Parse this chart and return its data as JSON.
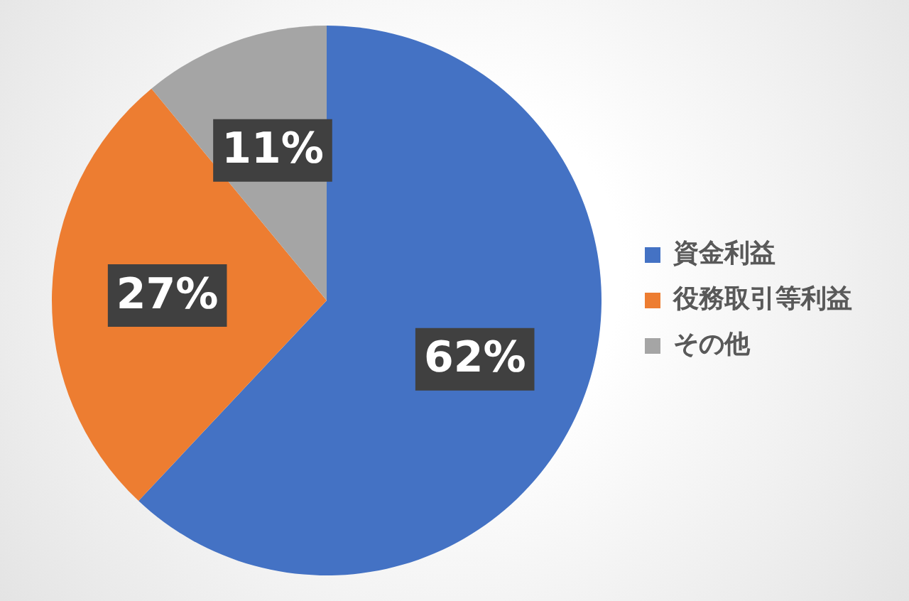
{
  "chart_data": {
    "type": "pie",
    "categories": [
      "資金利益",
      "役務取引等利益",
      "その他"
    ],
    "values": [
      62,
      27,
      11
    ],
    "value_labels": [
      "62%",
      "27%",
      "11%"
    ],
    "colors": [
      "#4472c4",
      "#ed7d31",
      "#a5a5a5"
    ],
    "legend": "right"
  }
}
